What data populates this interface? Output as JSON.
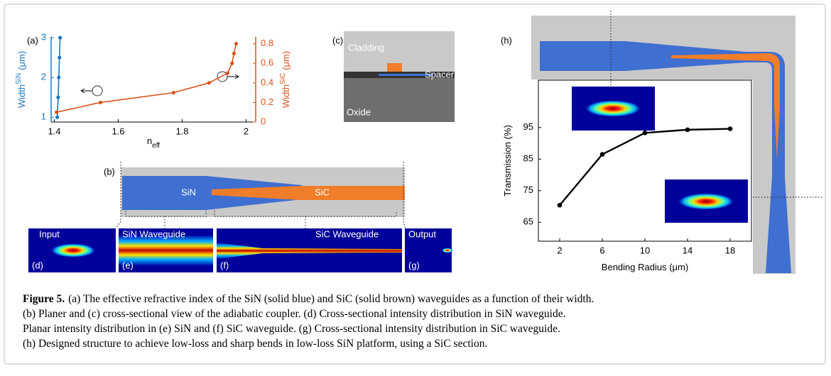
{
  "chart_data": [
    {
      "type": "line",
      "xlabel": "n",
      "xlabel_sub": "eff",
      "ylabel": "Width",
      "ylabel_sup": "SiN",
      "ylabel_unit": "(μm)",
      "y2label": "Width",
      "y2label_sup": "SiC",
      "y2label_unit": "(μm)",
      "xlim": [
        1.39,
        2.03
      ],
      "xticks": [
        1.4,
        1.6,
        1.8,
        2
      ],
      "ylim": [
        0.88,
        3.02
      ],
      "yticks": [
        1,
        2,
        3
      ],
      "y2lim": [
        0,
        0.87
      ],
      "y2ticks": [
        0,
        0.2,
        0.4,
        0.6,
        0.8
      ],
      "series": [
        {
          "name": "SiN",
          "color": "#1a78c2",
          "x": [
            1.409,
            1.412,
            1.414,
            1.416,
            1.418
          ],
          "values": [
            1,
            1.5,
            2,
            2.5,
            3
          ]
        },
        {
          "name": "SiC",
          "color": "#d9541e",
          "axis": "y2",
          "x": [
            1.407,
            1.544,
            1.773,
            1.884,
            1.942,
            1.956,
            1.962,
            1.969
          ],
          "values": [
            0.1,
            0.2,
            0.3,
            0.4,
            0.5,
            0.6,
            0.7,
            0.8
          ]
        }
      ]
    },
    {
      "type": "line",
      "xlabel": "Bending Radius (μm)",
      "ylabel": "Transmission (%)",
      "xlim": [
        0,
        20
      ],
      "xticks": [
        2,
        6,
        10,
        14,
        18
      ],
      "ylim": [
        59,
        110
      ],
      "yticks": [
        65,
        75,
        85,
        95
      ],
      "series": [
        {
          "name": "Transmission",
          "color": "#000000",
          "x": [
            2,
            6,
            10,
            14,
            18
          ],
          "values": [
            70.4,
            86.5,
            93.3,
            94.3,
            94.6
          ]
        }
      ]
    }
  ],
  "figure": {
    "panels": {
      "a": "(a)",
      "b": "(b)",
      "c": "(c)",
      "d": "(d)",
      "e": "(e)",
      "f": "(f)",
      "g": "(g)",
      "h": "(h)"
    },
    "cross_section": {
      "cladding": "Cladding",
      "spacer": "Spacer",
      "oxide": "Oxide"
    },
    "coupler": {
      "sin": "SiN",
      "sic": "SiC"
    },
    "modes": {
      "input": "Input",
      "sin_waveguide": "SiN Waveguide",
      "sic_waveguide": "SiC Waveguide",
      "output": "Output"
    },
    "caption": {
      "label": "Figure 5.",
      "lines": [
        "(a) The effective refractive index of the SiN (solid blue) and SiC (solid brown) waveguides as a function of their width.",
        "(b) Planer and (c) cross-sectional view of the adiabatic coupler. (d) Cross-sectional intensity distribution in SiN waveguide.",
        "Planar intensity distribution in (e) SiN and (f) SiC waveguide. (g) Cross-sectional intensity distribution in SiC waveguide.",
        "(h) Designed structure to achieve low-loss and sharp bends in low-loss SiN platform, using a SiC section."
      ]
    }
  }
}
